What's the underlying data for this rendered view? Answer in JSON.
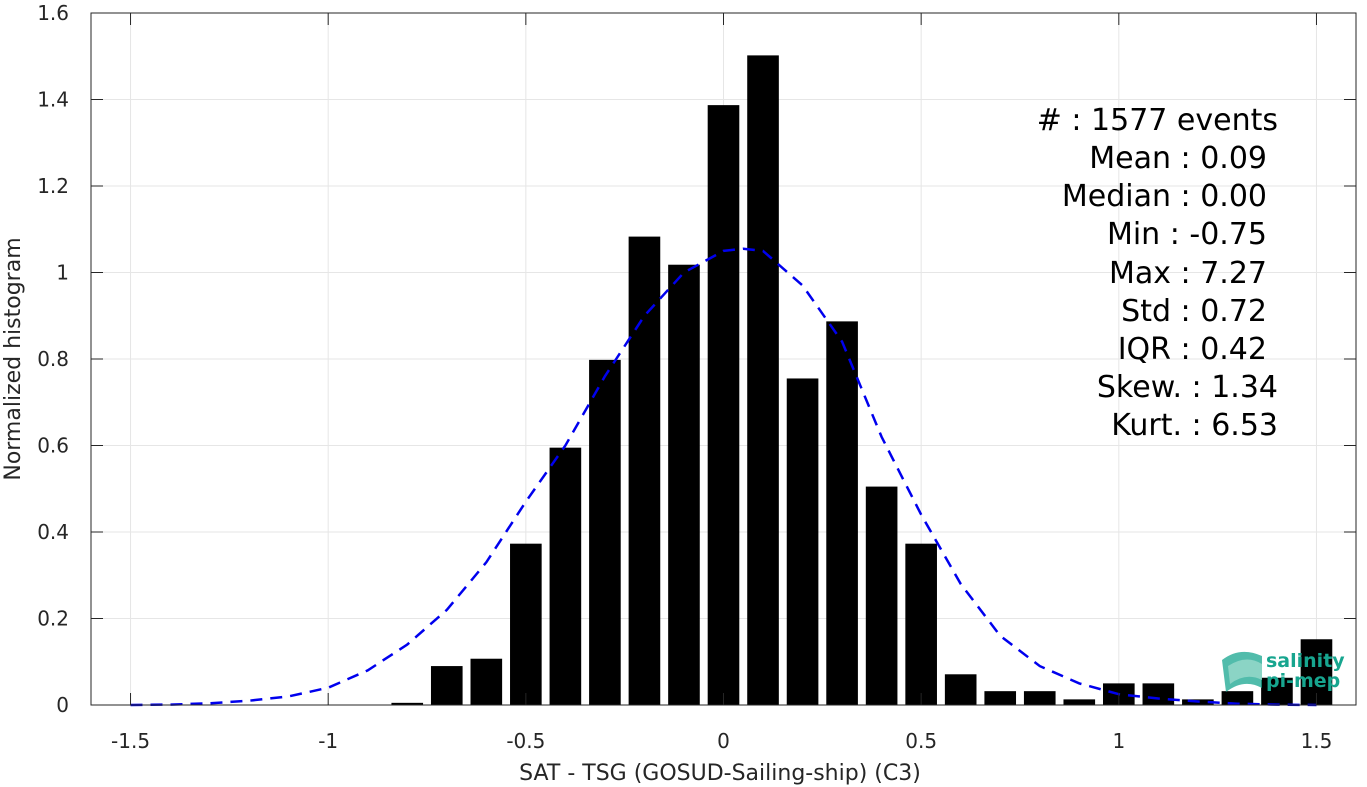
{
  "chart_data": {
    "type": "bar",
    "xlabel": "SAT - TSG (GOSUD-Sailing-ship) (C3)",
    "ylabel": "Normalized histogram",
    "xlim": [
      -1.6,
      1.6
    ],
    "ylim": [
      0,
      1.6
    ],
    "x_ticks": [
      -1.5,
      -1,
      -0.5,
      0,
      0.5,
      1,
      1.5
    ],
    "x_tick_labels": [
      "-1.5",
      "-1",
      "-0.5",
      "0",
      "0.5",
      "1",
      "1.5"
    ],
    "y_ticks": [
      0,
      0.2,
      0.4,
      0.6,
      0.8,
      1,
      1.2,
      1.4,
      1.6
    ],
    "y_tick_labels": [
      "0",
      "0.2",
      "0.4",
      "0.6",
      "0.8",
      "1",
      "1.2",
      "1.4",
      "1.6"
    ],
    "grid": true,
    "bar_width": 0.08,
    "bars": {
      "x": [
        -0.8,
        -0.7,
        -0.6,
        -0.5,
        -0.4,
        -0.3,
        -0.2,
        -0.1,
        0.0,
        0.1,
        0.2,
        0.3,
        0.4,
        0.5,
        0.6,
        0.7,
        0.8,
        0.9,
        1.0,
        1.1,
        1.2,
        1.3,
        1.4,
        1.5
      ],
      "values": [
        0.005,
        0.09,
        0.107,
        0.373,
        0.595,
        0.798,
        1.083,
        1.018,
        1.387,
        1.502,
        0.755,
        0.887,
        0.505,
        0.373,
        0.071,
        0.032,
        0.032,
        0.013,
        0.05,
        0.05,
        0.013,
        0.032,
        0.063,
        0.152
      ],
      "color": "#000000"
    },
    "fit_curve": {
      "style": "dashed",
      "color": "#0000ee",
      "x": [
        -1.5,
        -1.4,
        -1.3,
        -1.2,
        -1.1,
        -1.0,
        -0.9,
        -0.8,
        -0.7,
        -0.6,
        -0.5,
        -0.4,
        -0.3,
        -0.2,
        -0.1,
        0.0,
        0.05,
        0.1,
        0.2,
        0.3,
        0.4,
        0.5,
        0.6,
        0.7,
        0.8,
        0.9,
        1.0,
        1.1,
        1.2,
        1.3,
        1.4,
        1.5
      ],
      "y": [
        0.0,
        0.001,
        0.004,
        0.01,
        0.02,
        0.04,
        0.08,
        0.14,
        0.22,
        0.33,
        0.47,
        0.6,
        0.76,
        0.9,
        1.0,
        1.05,
        1.055,
        1.05,
        0.97,
        0.84,
        0.62,
        0.44,
        0.28,
        0.16,
        0.09,
        0.05,
        0.025,
        0.015,
        0.008,
        0.003,
        0.001,
        0.0
      ]
    },
    "annotations": [
      "#  : 1577 events",
      "Mean : 0.09",
      "Median : 0.00",
      "Min : -0.75",
      "Max : 7.27",
      "Std : 0.72",
      "IQR : 0.42",
      "Skew. : 1.34",
      "Kurt. : 6.53"
    ]
  },
  "logo": {
    "line1": "salinity",
    "line2": "pi-mep",
    "color": "#17a58f"
  }
}
